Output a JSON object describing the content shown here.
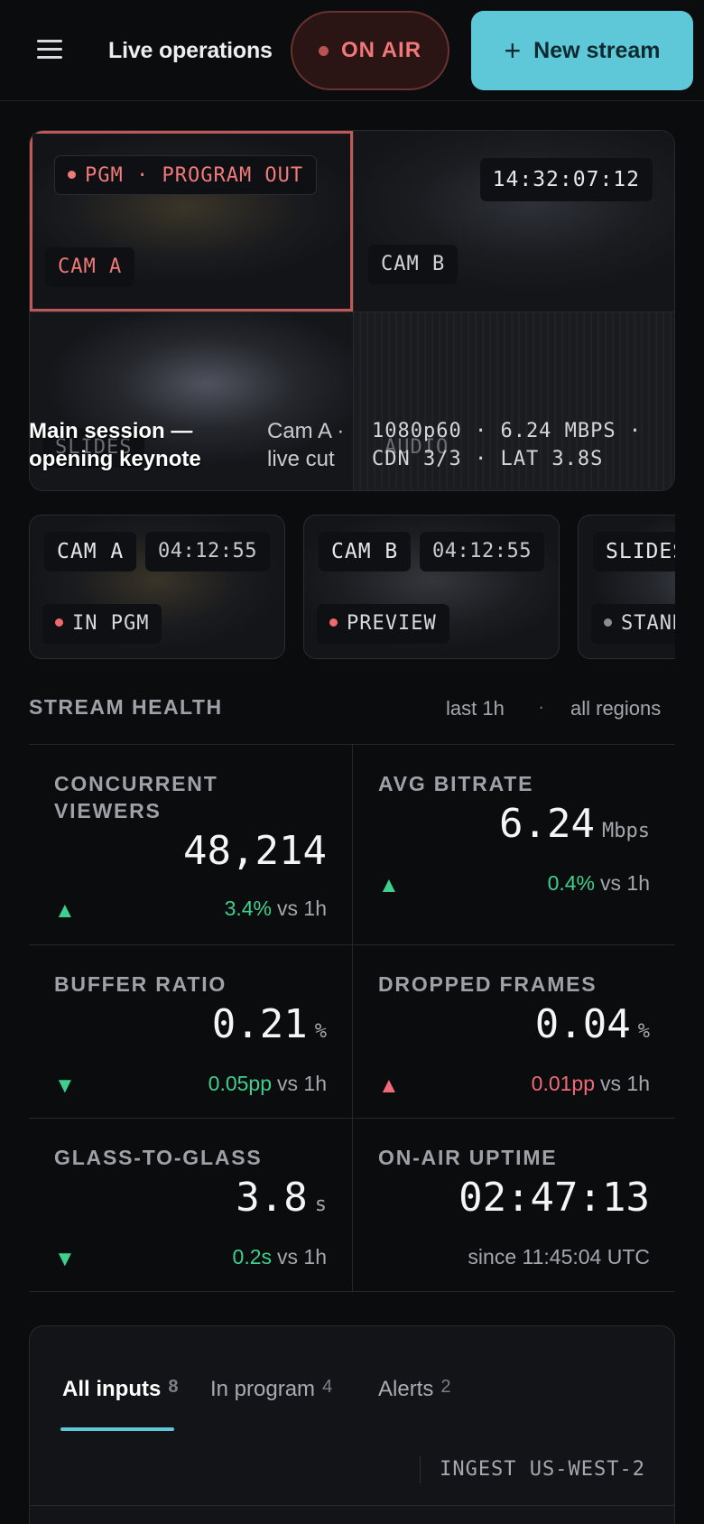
{
  "header": {
    "title": "Live operations",
    "on_air_label": "ON AIR",
    "new_stream_label": "New stream"
  },
  "multiview": {
    "program_label": "PGM · PROGRAM OUT",
    "timecode": "14:32:07:12",
    "tiles": [
      {
        "label": "CAM A"
      },
      {
        "label": "CAM B"
      },
      {
        "label": "SLIDES"
      },
      {
        "label": "AUDIO"
      }
    ],
    "overlay": {
      "title": "Main session — opening keynote",
      "subtitle": "Cam A · live cut",
      "meta": "1080p60 · 6.24 MBPS · CDN 3/3 · LAT 3.8S"
    }
  },
  "cameras": [
    {
      "name": "CAM A",
      "time": "04:12:55",
      "status": "IN PGM",
      "status_color": "#f06a6a"
    },
    {
      "name": "CAM B",
      "time": "04:12:55",
      "status": "PREVIEW",
      "status_color": "#f06a6a"
    },
    {
      "name": "SLIDES",
      "time": "",
      "status": "STANDBY",
      "status_color": "#8a8d93"
    }
  ],
  "stream_health": {
    "title": "STREAM HEALTH",
    "filter_time": "last 1h",
    "separator": "·",
    "filter_region": "all regions",
    "metrics": [
      {
        "label": "CONCURRENT VIEWERS",
        "value": "48,214",
        "unit": "",
        "trend": "up",
        "delta": "3.4%",
        "ref": "vs 1h"
      },
      {
        "label": "AVG BITRATE",
        "value": "6.24",
        "unit": "Mbps",
        "trend": "up",
        "delta": "0.4%",
        "ref": "vs 1h"
      },
      {
        "label": "BUFFER RATIO",
        "value": "0.21",
        "unit": "%",
        "trend": "down",
        "delta": "0.05pp",
        "ref": "vs 1h"
      },
      {
        "label": "DROPPED FRAMES",
        "value": "0.04",
        "unit": "%",
        "trend": "up-bad",
        "delta": "0.01pp",
        "ref": "vs 1h"
      },
      {
        "label": "GLASS-TO-GLASS",
        "value": "3.8",
        "unit": "s",
        "trend": "down",
        "delta": "0.2s",
        "ref": "vs 1h"
      },
      {
        "label": "ON-AIR UPTIME",
        "value": "02:47:13",
        "unit": "",
        "trend": "none",
        "delta": "",
        "ref": "since 11:45:04 UTC"
      }
    ]
  },
  "panel": {
    "tabs": [
      {
        "label": "All inputs",
        "count": "8"
      },
      {
        "label": "In program",
        "count": "4"
      },
      {
        "label": "Alerts",
        "count": "2"
      }
    ],
    "ingest": "INGEST US-WEST-2"
  },
  "colors": {
    "accent": "#5ec8d8",
    "live_red": "#f07878",
    "positive": "#3fcf8e",
    "negative": "#f06a7a"
  }
}
